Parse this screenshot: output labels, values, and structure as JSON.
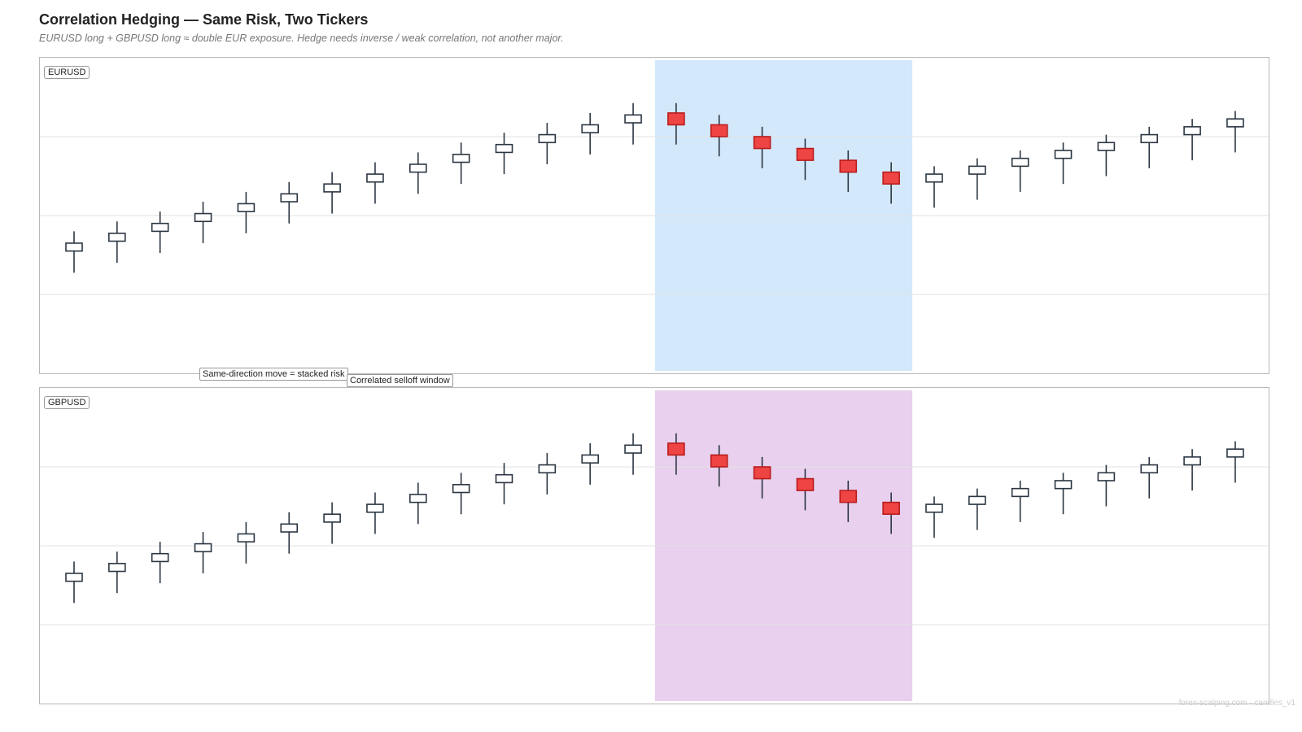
{
  "header": {
    "title": "Correlation Hedging — Same Risk, Two Tickers",
    "subtitle": "EURUSD long + GBPUSD long ≈ double EUR exposure. Hedge needs inverse / weak correlation, not another major."
  },
  "annotations": {
    "stacked_risk": "Same-direction move = stacked risk",
    "selloff_window": "Correlated selloff window"
  },
  "footer": {
    "text": "forex-scalping.com · candles_v1"
  },
  "colors": {
    "up_body": "#ffffff",
    "down_body": "#ef4444",
    "up_outline": "#2b3642",
    "down_outline": "#b91c1c",
    "eur_highlight": "#d3e8fb",
    "gbp_highlight": "#e8d0ee",
    "grid": "#e2e2e2"
  },
  "chart_data": [
    {
      "type": "candlestick",
      "ticker": "EURUSD",
      "ylim": [
        0,
        8
      ],
      "grid_y": [
        2,
        4,
        6
      ],
      "highlight_range": [
        14,
        19
      ],
      "candles": [
        {
          "o": 3.1,
          "h": 3.6,
          "l": 2.55,
          "c": 3.3
        },
        {
          "o": 3.35,
          "h": 3.85,
          "l": 2.8,
          "c": 3.55
        },
        {
          "o": 3.6,
          "h": 4.1,
          "l": 3.05,
          "c": 3.8
        },
        {
          "o": 3.85,
          "h": 4.35,
          "l": 3.3,
          "c": 4.05
        },
        {
          "o": 4.1,
          "h": 4.6,
          "l": 3.55,
          "c": 4.3
        },
        {
          "o": 4.35,
          "h": 4.85,
          "l": 3.8,
          "c": 4.55
        },
        {
          "o": 4.6,
          "h": 5.1,
          "l": 4.05,
          "c": 4.8
        },
        {
          "o": 4.85,
          "h": 5.35,
          "l": 4.3,
          "c": 5.05
        },
        {
          "o": 5.1,
          "h": 5.6,
          "l": 4.55,
          "c": 5.3
        },
        {
          "o": 5.35,
          "h": 5.85,
          "l": 4.8,
          "c": 5.55
        },
        {
          "o": 5.6,
          "h": 6.1,
          "l": 5.05,
          "c": 5.8
        },
        {
          "o": 5.85,
          "h": 6.35,
          "l": 5.3,
          "c": 6.05
        },
        {
          "o": 6.1,
          "h": 6.6,
          "l": 5.55,
          "c": 6.3
        },
        {
          "o": 6.35,
          "h": 6.85,
          "l": 5.8,
          "c": 6.55
        },
        {
          "o": 6.6,
          "h": 6.85,
          "l": 5.8,
          "c": 6.3
        },
        {
          "o": 6.3,
          "h": 6.55,
          "l": 5.5,
          "c": 6.0
        },
        {
          "o": 6.0,
          "h": 6.25,
          "l": 5.2,
          "c": 5.7
        },
        {
          "o": 5.7,
          "h": 5.95,
          "l": 4.9,
          "c": 5.4
        },
        {
          "o": 5.4,
          "h": 5.65,
          "l": 4.6,
          "c": 5.1
        },
        {
          "o": 5.1,
          "h": 5.35,
          "l": 4.3,
          "c": 4.8
        },
        {
          "o": 4.85,
          "h": 5.25,
          "l": 4.2,
          "c": 5.05
        },
        {
          "o": 5.05,
          "h": 5.45,
          "l": 4.4,
          "c": 5.25
        },
        {
          "o": 5.25,
          "h": 5.65,
          "l": 4.6,
          "c": 5.45
        },
        {
          "o": 5.45,
          "h": 5.85,
          "l": 4.8,
          "c": 5.65
        },
        {
          "o": 5.65,
          "h": 6.05,
          "l": 5.0,
          "c": 5.85
        },
        {
          "o": 5.85,
          "h": 6.25,
          "l": 5.2,
          "c": 6.05
        },
        {
          "o": 6.05,
          "h": 6.45,
          "l": 5.4,
          "c": 6.25
        },
        {
          "o": 6.25,
          "h": 6.65,
          "l": 5.6,
          "c": 6.45
        }
      ]
    },
    {
      "type": "candlestick",
      "ticker": "GBPUSD",
      "ylim": [
        0,
        8
      ],
      "grid_y": [
        2,
        4,
        6
      ],
      "highlight_range": [
        14,
        19
      ],
      "candles": [
        {
          "o": 3.1,
          "h": 3.6,
          "l": 2.55,
          "c": 3.3
        },
        {
          "o": 3.35,
          "h": 3.85,
          "l": 2.8,
          "c": 3.55
        },
        {
          "o": 3.6,
          "h": 4.1,
          "l": 3.05,
          "c": 3.8
        },
        {
          "o": 3.85,
          "h": 4.35,
          "l": 3.3,
          "c": 4.05
        },
        {
          "o": 4.1,
          "h": 4.6,
          "l": 3.55,
          "c": 4.3
        },
        {
          "o": 4.35,
          "h": 4.85,
          "l": 3.8,
          "c": 4.55
        },
        {
          "o": 4.6,
          "h": 5.1,
          "l": 4.05,
          "c": 4.8
        },
        {
          "o": 4.85,
          "h": 5.35,
          "l": 4.3,
          "c": 5.05
        },
        {
          "o": 5.1,
          "h": 5.6,
          "l": 4.55,
          "c": 5.3
        },
        {
          "o": 5.35,
          "h": 5.85,
          "l": 4.8,
          "c": 5.55
        },
        {
          "o": 5.6,
          "h": 6.1,
          "l": 5.05,
          "c": 5.8
        },
        {
          "o": 5.85,
          "h": 6.35,
          "l": 5.3,
          "c": 6.05
        },
        {
          "o": 6.1,
          "h": 6.6,
          "l": 5.55,
          "c": 6.3
        },
        {
          "o": 6.35,
          "h": 6.85,
          "l": 5.8,
          "c": 6.55
        },
        {
          "o": 6.6,
          "h": 6.85,
          "l": 5.8,
          "c": 6.3
        },
        {
          "o": 6.3,
          "h": 6.55,
          "l": 5.5,
          "c": 6.0
        },
        {
          "o": 6.0,
          "h": 6.25,
          "l": 5.2,
          "c": 5.7
        },
        {
          "o": 5.7,
          "h": 5.95,
          "l": 4.9,
          "c": 5.4
        },
        {
          "o": 5.4,
          "h": 5.65,
          "l": 4.6,
          "c": 5.1
        },
        {
          "o": 5.1,
          "h": 5.35,
          "l": 4.3,
          "c": 4.8
        },
        {
          "o": 4.85,
          "h": 5.25,
          "l": 4.2,
          "c": 5.05
        },
        {
          "o": 5.05,
          "h": 5.45,
          "l": 4.4,
          "c": 5.25
        },
        {
          "o": 5.25,
          "h": 5.65,
          "l": 4.6,
          "c": 5.45
        },
        {
          "o": 5.45,
          "h": 5.85,
          "l": 4.8,
          "c": 5.65
        },
        {
          "o": 5.65,
          "h": 6.05,
          "l": 5.0,
          "c": 5.85
        },
        {
          "o": 5.85,
          "h": 6.25,
          "l": 5.2,
          "c": 6.05
        },
        {
          "o": 6.05,
          "h": 6.45,
          "l": 5.4,
          "c": 6.25
        },
        {
          "o": 6.25,
          "h": 6.65,
          "l": 5.6,
          "c": 6.45
        }
      ]
    }
  ]
}
